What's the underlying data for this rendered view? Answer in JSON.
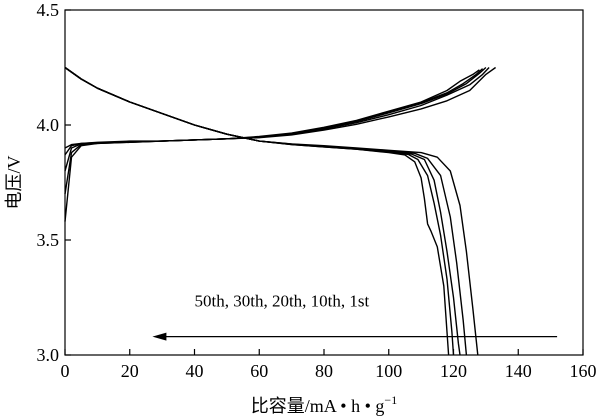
{
  "chart_data": {
    "type": "line",
    "xlabel": "比容量/mA • h • g",
    "xlabel_sup": "−1",
    "ylabel": "电压/V",
    "xlim": [
      0,
      160
    ],
    "ylim": [
      3.0,
      4.5
    ],
    "x_ticks": [
      0,
      20,
      40,
      60,
      80,
      100,
      120,
      140,
      160
    ],
    "y_ticks": [
      "3.0",
      "3.5",
      "4.0",
      "4.5"
    ],
    "grid": false,
    "annotation": {
      "text": "50th, 30th, 20th, 10th, 1st",
      "arrow_from": [
        152,
        3.08
      ],
      "arrow_to": [
        27,
        3.08
      ]
    },
    "series": [
      {
        "charge": [
          [
            0,
            3.58
          ],
          [
            2,
            3.86
          ],
          [
            5,
            3.91
          ],
          [
            10,
            3.92
          ],
          [
            20,
            3.925
          ],
          [
            30,
            3.93
          ],
          [
            40,
            3.935
          ],
          [
            50,
            3.94
          ],
          [
            60,
            3.95
          ],
          [
            70,
            3.965
          ],
          [
            80,
            3.99
          ],
          [
            90,
            4.02
          ],
          [
            100,
            4.06
          ],
          [
            110,
            4.1
          ],
          [
            118,
            4.15
          ],
          [
            122,
            4.19
          ],
          [
            126,
            4.22
          ],
          [
            128,
            4.24
          ]
        ],
        "discharge": [
          [
            0,
            4.25
          ],
          [
            5,
            4.2
          ],
          [
            10,
            4.16
          ],
          [
            20,
            4.1
          ],
          [
            30,
            4.05
          ],
          [
            40,
            4.0
          ],
          [
            50,
            3.96
          ],
          [
            60,
            3.93
          ],
          [
            70,
            3.915
          ],
          [
            80,
            3.905
          ],
          [
            90,
            3.895
          ],
          [
            100,
            3.88
          ],
          [
            105,
            3.87
          ],
          [
            108,
            3.84
          ],
          [
            110,
            3.77
          ],
          [
            111,
            3.68
          ],
          [
            112,
            3.57
          ],
          [
            113,
            3.54
          ],
          [
            115,
            3.47
          ],
          [
            117,
            3.3
          ],
          [
            118,
            3.1
          ],
          [
            118.5,
            3.0
          ]
        ]
      },
      {
        "charge": [
          [
            0,
            3.7
          ],
          [
            2,
            3.88
          ],
          [
            5,
            3.915
          ],
          [
            10,
            3.92
          ],
          [
            20,
            3.925
          ],
          [
            30,
            3.93
          ],
          [
            40,
            3.935
          ],
          [
            50,
            3.94
          ],
          [
            60,
            3.948
          ],
          [
            70,
            3.963
          ],
          [
            80,
            3.988
          ],
          [
            90,
            4.018
          ],
          [
            100,
            4.057
          ],
          [
            110,
            4.097
          ],
          [
            118,
            4.14
          ],
          [
            123,
            4.18
          ],
          [
            127,
            4.22
          ],
          [
            129,
            4.245
          ]
        ],
        "discharge": [
          [
            0,
            4.25
          ],
          [
            5,
            4.2
          ],
          [
            10,
            4.16
          ],
          [
            20,
            4.1
          ],
          [
            30,
            4.05
          ],
          [
            40,
            4.0
          ],
          [
            50,
            3.96
          ],
          [
            60,
            3.93
          ],
          [
            70,
            3.915
          ],
          [
            80,
            3.905
          ],
          [
            90,
            3.895
          ],
          [
            100,
            3.882
          ],
          [
            106,
            3.872
          ],
          [
            109,
            3.85
          ],
          [
            112,
            3.78
          ],
          [
            114,
            3.66
          ],
          [
            116,
            3.52
          ],
          [
            118,
            3.33
          ],
          [
            119.5,
            3.1
          ],
          [
            120,
            3.0
          ]
        ]
      },
      {
        "charge": [
          [
            0,
            3.8
          ],
          [
            2,
            3.9
          ],
          [
            5,
            3.918
          ],
          [
            10,
            3.922
          ],
          [
            20,
            3.926
          ],
          [
            30,
            3.93
          ],
          [
            40,
            3.935
          ],
          [
            50,
            3.94
          ],
          [
            60,
            3.947
          ],
          [
            70,
            3.962
          ],
          [
            80,
            3.986
          ],
          [
            90,
            4.015
          ],
          [
            100,
            4.053
          ],
          [
            110,
            4.093
          ],
          [
            118,
            4.135
          ],
          [
            124,
            4.18
          ],
          [
            128,
            4.225
          ],
          [
            130,
            4.25
          ]
        ],
        "discharge": [
          [
            0,
            4.25
          ],
          [
            5,
            4.2
          ],
          [
            10,
            4.16
          ],
          [
            20,
            4.1
          ],
          [
            30,
            4.05
          ],
          [
            40,
            4.0
          ],
          [
            50,
            3.96
          ],
          [
            60,
            3.93
          ],
          [
            70,
            3.916
          ],
          [
            80,
            3.906
          ],
          [
            90,
            3.896
          ],
          [
            100,
            3.884
          ],
          [
            107,
            3.874
          ],
          [
            111,
            3.85
          ],
          [
            114,
            3.76
          ],
          [
            116,
            3.62
          ],
          [
            118,
            3.45
          ],
          [
            120,
            3.25
          ],
          [
            121.5,
            3.05
          ],
          [
            122,
            3.0
          ]
        ]
      },
      {
        "charge": [
          [
            0,
            3.87
          ],
          [
            2,
            3.91
          ],
          [
            5,
            3.92
          ],
          [
            10,
            3.923
          ],
          [
            20,
            3.927
          ],
          [
            30,
            3.93
          ],
          [
            40,
            3.935
          ],
          [
            50,
            3.94
          ],
          [
            60,
            3.946
          ],
          [
            70,
            3.96
          ],
          [
            80,
            3.982
          ],
          [
            90,
            4.01
          ],
          [
            100,
            4.045
          ],
          [
            110,
            4.085
          ],
          [
            118,
            4.13
          ],
          [
            125,
            4.175
          ],
          [
            129,
            4.22
          ],
          [
            131,
            4.25
          ]
        ],
        "discharge": [
          [
            0,
            4.25
          ],
          [
            5,
            4.2
          ],
          [
            10,
            4.16
          ],
          [
            20,
            4.1
          ],
          [
            30,
            4.05
          ],
          [
            40,
            4.0
          ],
          [
            50,
            3.96
          ],
          [
            60,
            3.93
          ],
          [
            70,
            3.917
          ],
          [
            80,
            3.907
          ],
          [
            90,
            3.898
          ],
          [
            100,
            3.887
          ],
          [
            108,
            3.877
          ],
          [
            112,
            3.855
          ],
          [
            116,
            3.78
          ],
          [
            119,
            3.6
          ],
          [
            121,
            3.4
          ],
          [
            123,
            3.15
          ],
          [
            124,
            3.0
          ]
        ]
      },
      {
        "charge": [
          [
            0,
            3.9
          ],
          [
            2,
            3.915
          ],
          [
            5,
            3.92
          ],
          [
            10,
            3.925
          ],
          [
            20,
            3.93
          ],
          [
            30,
            3.93
          ],
          [
            40,
            3.935
          ],
          [
            50,
            3.94
          ],
          [
            60,
            3.945
          ],
          [
            70,
            3.957
          ],
          [
            80,
            3.978
          ],
          [
            90,
            4.003
          ],
          [
            100,
            4.035
          ],
          [
            110,
            4.07
          ],
          [
            118,
            4.105
          ],
          [
            125,
            4.15
          ],
          [
            130,
            4.22
          ],
          [
            133,
            4.25
          ]
        ],
        "discharge": [
          [
            0,
            4.25
          ],
          [
            5,
            4.2
          ],
          [
            10,
            4.16
          ],
          [
            20,
            4.1
          ],
          [
            30,
            4.05
          ],
          [
            40,
            4.0
          ],
          [
            50,
            3.96
          ],
          [
            60,
            3.93
          ],
          [
            70,
            3.918
          ],
          [
            80,
            3.91
          ],
          [
            90,
            3.9
          ],
          [
            100,
            3.89
          ],
          [
            110,
            3.88
          ],
          [
            115,
            3.86
          ],
          [
            119,
            3.8
          ],
          [
            122,
            3.65
          ],
          [
            124,
            3.45
          ],
          [
            126,
            3.2
          ],
          [
            127.5,
            3.0
          ]
        ]
      }
    ]
  }
}
